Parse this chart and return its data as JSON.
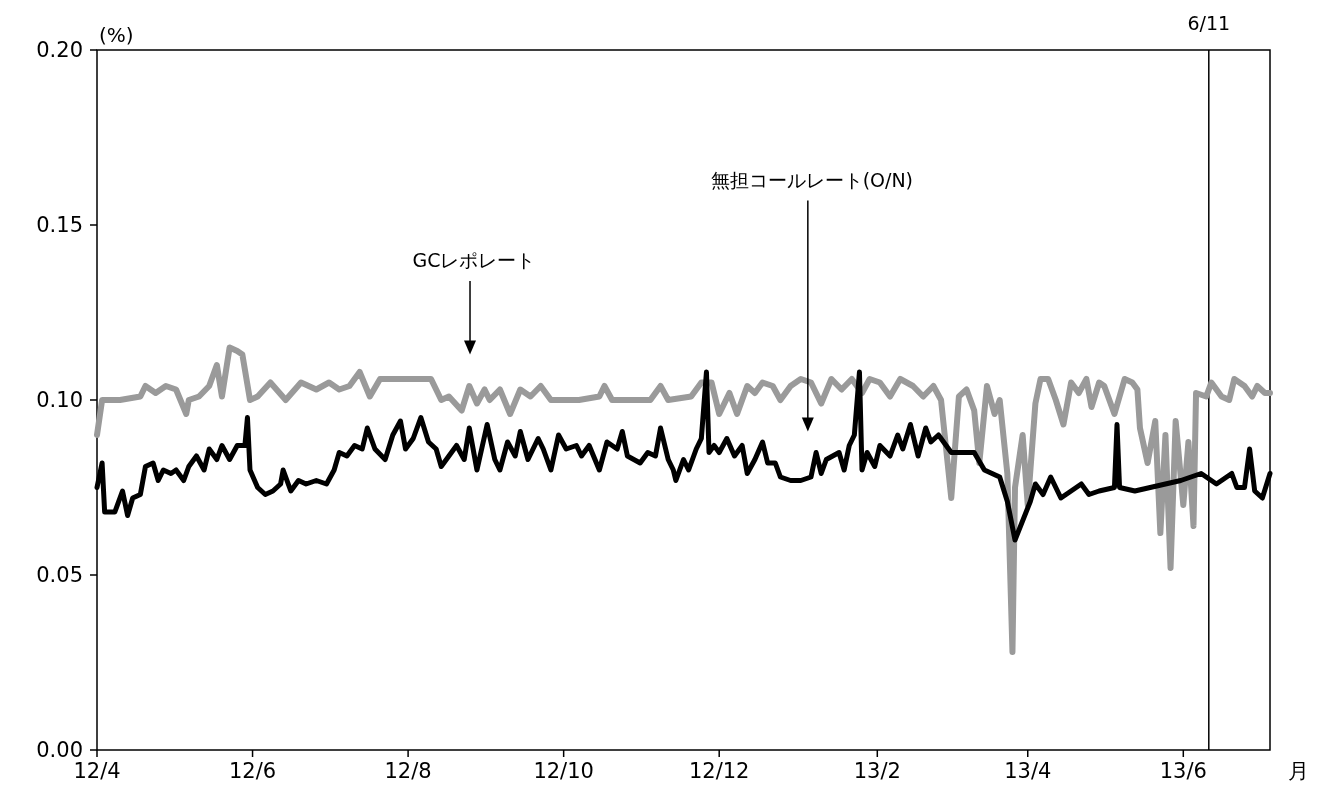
{
  "chart_data": {
    "type": "line",
    "ylabel": "(%)",
    "xlabel": "月",
    "xlim": [
      "2012-04-01",
      "2013-07-05"
    ],
    "ylim": [
      0,
      0.2
    ],
    "xticks": [
      {
        "value": "2012-04-01",
        "label": "12/4"
      },
      {
        "value": "2012-06-01",
        "label": "12/6"
      },
      {
        "value": "2012-08-01",
        "label": "12/8"
      },
      {
        "value": "2012-10-01",
        "label": "12/10"
      },
      {
        "value": "2012-12-01",
        "label": "12/12"
      },
      {
        "value": "2013-02-01",
        "label": "13/2"
      },
      {
        "value": "2013-04-01",
        "label": "13/4"
      },
      {
        "value": "2013-06-01",
        "label": "13/6"
      }
    ],
    "yticks": [
      {
        "value": 0,
        "label": "0.00"
      },
      {
        "value": 0.05,
        "label": "0.05"
      },
      {
        "value": 0.1,
        "label": "0.10"
      },
      {
        "value": 0.15,
        "label": "0.15"
      },
      {
        "value": 0.2,
        "label": "0.20"
      }
    ],
    "series": [
      {
        "color": "#9a9a9a",
        "x": [
          "2012-04-01",
          "2012-04-03",
          "2012-04-10",
          "2012-04-18",
          "2012-04-20",
          "2012-04-24",
          "2012-04-28",
          "2012-05-02",
          "2012-05-06",
          "2012-05-07",
          "2012-05-11",
          "2012-05-15",
          "2012-05-18",
          "2012-05-20",
          "2012-05-23",
          "2012-05-26",
          "2012-05-28",
          "2012-05-31",
          "2012-06-03",
          "2012-06-08",
          "2012-06-14",
          "2012-06-20",
          "2012-06-26",
          "2012-07-01",
          "2012-07-05",
          "2012-07-09",
          "2012-07-13",
          "2012-07-17",
          "2012-07-21",
          "2012-07-29",
          "2012-08-10",
          "2012-08-14",
          "2012-08-17",
          "2012-08-22",
          "2012-08-25",
          "2012-08-28",
          "2012-08-31",
          "2012-09-02",
          "2012-09-06",
          "2012-09-10",
          "2012-09-14",
          "2012-09-18",
          "2012-09-22",
          "2012-09-26",
          "2012-10-07",
          "2012-10-15",
          "2012-10-17",
          "2012-10-20",
          "2012-11-04",
          "2012-11-08",
          "2012-11-11",
          "2012-11-20",
          "2012-11-24",
          "2012-11-28",
          "2012-12-01",
          "2012-12-05",
          "2012-12-08",
          "2012-12-12",
          "2012-12-15",
          "2012-12-18",
          "2012-12-22",
          "2012-12-25",
          "2012-12-29",
          "2013-01-02",
          "2013-01-06",
          "2013-01-10",
          "2013-01-14",
          "2013-01-18",
          "2013-01-22",
          "2013-01-26",
          "2013-01-29",
          "2013-02-02",
          "2013-02-06",
          "2013-02-10",
          "2013-02-15",
          "2013-02-19",
          "2013-02-23",
          "2013-02-26",
          "2013-03-02",
          "2013-03-05",
          "2013-03-08",
          "2013-03-11",
          "2013-03-13",
          "2013-03-16",
          "2013-03-19",
          "2013-03-21",
          "2013-03-24",
          "2013-03-26",
          "2013-03-27",
          "2013-03-30",
          "2013-04-01",
          "2013-04-04",
          "2013-04-06",
          "2013-04-09",
          "2013-04-12",
          "2013-04-15",
          "2013-04-18",
          "2013-04-21",
          "2013-04-24",
          "2013-04-26",
          "2013-04-29",
          "2013-05-01",
          "2013-05-05",
          "2013-05-09",
          "2013-05-12",
          "2013-05-14",
          "2013-05-15",
          "2013-05-18",
          "2013-05-21",
          "2013-05-23",
          "2013-05-25",
          "2013-05-27",
          "2013-05-29",
          "2013-06-01",
          "2013-06-03",
          "2013-06-05",
          "2013-06-06",
          "2013-06-10",
          "2013-06-12",
          "2013-06-16",
          "2013-06-19",
          "2013-06-21",
          "2013-06-25",
          "2013-06-28",
          "2013-06-30",
          "2013-07-03",
          "2013-07-05"
        ],
        "values": [
          0.09,
          0.1,
          0.1,
          0.101,
          0.104,
          0.102,
          0.104,
          0.103,
          0.096,
          0.1,
          0.101,
          0.104,
          0.11,
          0.101,
          0.115,
          0.114,
          0.113,
          0.1,
          0.101,
          0.105,
          0.1,
          0.105,
          0.103,
          0.105,
          0.103,
          0.104,
          0.108,
          0.101,
          0.106,
          0.106,
          0.106,
          0.1,
          0.101,
          0.097,
          0.104,
          0.099,
          0.103,
          0.1,
          0.103,
          0.096,
          0.103,
          0.101,
          0.104,
          0.1,
          0.1,
          0.101,
          0.104,
          0.1,
          0.1,
          0.104,
          0.1,
          0.101,
          0.105,
          0.105,
          0.096,
          0.102,
          0.096,
          0.104,
          0.102,
          0.105,
          0.104,
          0.1,
          0.104,
          0.106,
          0.105,
          0.099,
          0.106,
          0.103,
          0.106,
          0.102,
          0.106,
          0.105,
          0.101,
          0.106,
          0.104,
          0.101,
          0.104,
          0.1,
          0.072,
          0.101,
          0.103,
          0.097,
          0.082,
          0.104,
          0.096,
          0.1,
          0.079,
          0.028,
          0.075,
          0.09,
          0.07,
          0.099,
          0.106,
          0.106,
          0.1,
          0.093,
          0.105,
          0.102,
          0.106,
          0.098,
          0.105,
          0.104,
          0.096,
          0.106,
          0.105,
          0.103,
          0.092,
          0.082,
          0.094,
          0.062,
          0.09,
          0.052,
          0.094,
          0.07,
          0.088,
          0.064,
          0.102,
          0.101,
          0.105,
          0.101,
          0.1,
          0.106,
          0.104,
          0.101,
          0.104,
          0.102,
          0.102
        ]
      },
      {
        "color": "#000000",
        "x": [
          "2012-04-01",
          "2012-04-03",
          "2012-04-04",
          "2012-04-08",
          "2012-04-11",
          "2012-04-13",
          "2012-04-15",
          "2012-04-18",
          "2012-04-20",
          "2012-04-23",
          "2012-04-25",
          "2012-04-27",
          "2012-04-30",
          "2012-05-02",
          "2012-05-05",
          "2012-05-07",
          "2012-05-10",
          "2012-05-13",
          "2012-05-15",
          "2012-05-18",
          "2012-05-20",
          "2012-05-23",
          "2012-05-26",
          "2012-05-29",
          "2012-05-30",
          "2012-05-31",
          "2012-06-03",
          "2012-06-06",
          "2012-06-09",
          "2012-06-12",
          "2012-06-13",
          "2012-06-16",
          "2012-06-19",
          "2012-06-22",
          "2012-06-26",
          "2012-06-30",
          "2012-07-03",
          "2012-07-05",
          "2012-07-08",
          "2012-07-11",
          "2012-07-14",
          "2012-07-16",
          "2012-07-19",
          "2012-07-23",
          "2012-07-26",
          "2012-07-29",
          "2012-07-31",
          "2012-08-03",
          "2012-08-06",
          "2012-08-09",
          "2012-08-12",
          "2012-08-14",
          "2012-08-17",
          "2012-08-20",
          "2012-08-23",
          "2012-08-25",
          "2012-08-28",
          "2012-09-01",
          "2012-09-04",
          "2012-09-06",
          "2012-09-09",
          "2012-09-12",
          "2012-09-14",
          "2012-09-17",
          "2012-09-21",
          "2012-09-23",
          "2012-09-26",
          "2012-09-29",
          "2012-10-02",
          "2012-10-06",
          "2012-10-08",
          "2012-10-11",
          "2012-10-15",
          "2012-10-18",
          "2012-10-22",
          "2012-10-24",
          "2012-10-26",
          "2012-10-31",
          "2012-11-03",
          "2012-11-06",
          "2012-11-08",
          "2012-11-11",
          "2012-11-13",
          "2012-11-14",
          "2012-11-17",
          "2012-11-19",
          "2012-11-22",
          "2012-11-24",
          "2012-11-26",
          "2012-11-27",
          "2012-11-29",
          "2012-12-01",
          "2012-12-04",
          "2012-12-07",
          "2012-12-10",
          "2012-12-12",
          "2012-12-15",
          "2012-12-18",
          "2012-12-20",
          "2012-12-23",
          "2012-12-25",
          "2012-12-29",
          "2013-01-02",
          "2013-01-06",
          "2013-01-08",
          "2013-01-10",
          "2013-01-12",
          "2013-01-17",
          "2013-01-19",
          "2013-01-21",
          "2013-01-23",
          "2013-01-25",
          "2013-01-26",
          "2013-01-28",
          "2013-01-31",
          "2013-02-02",
          "2013-02-06",
          "2013-02-09",
          "2013-02-11",
          "2013-02-14",
          "2013-02-17",
          "2013-02-20",
          "2013-02-22",
          "2013-02-25",
          "2013-02-28",
          "2013-03-02",
          "2013-03-11",
          "2013-03-15",
          "2013-03-21",
          "2013-03-24",
          "2013-03-27",
          "2013-04-02",
          "2013-04-04",
          "2013-04-07",
          "2013-04-10",
          "2013-04-14",
          "2013-04-18",
          "2013-04-22",
          "2013-04-25",
          "2013-04-29",
          "2013-05-05",
          "2013-05-06",
          "2013-05-07",
          "2013-05-13",
          "2013-05-19",
          "2013-05-25",
          "2013-05-31",
          "2013-06-08",
          "2013-06-14",
          "2013-06-20",
          "2013-06-22",
          "2013-06-25",
          "2013-06-27",
          "2013-06-29",
          "2013-07-02",
          "2013-07-05"
        ],
        "values": [
          0.075,
          0.082,
          0.068,
          0.068,
          0.074,
          0.067,
          0.072,
          0.073,
          0.081,
          0.082,
          0.077,
          0.08,
          0.079,
          0.08,
          0.077,
          0.081,
          0.084,
          0.08,
          0.086,
          0.083,
          0.087,
          0.083,
          0.087,
          0.087,
          0.095,
          0.08,
          0.075,
          0.073,
          0.074,
          0.076,
          0.08,
          0.074,
          0.077,
          0.076,
          0.077,
          0.076,
          0.08,
          0.085,
          0.084,
          0.087,
          0.086,
          0.092,
          0.086,
          0.083,
          0.09,
          0.094,
          0.086,
          0.089,
          0.095,
          0.088,
          0.086,
          0.081,
          0.084,
          0.087,
          0.083,
          0.092,
          0.08,
          0.093,
          0.083,
          0.08,
          0.088,
          0.084,
          0.091,
          0.083,
          0.089,
          0.086,
          0.08,
          0.09,
          0.086,
          0.087,
          0.084,
          0.087,
          0.08,
          0.088,
          0.086,
          0.091,
          0.084,
          0.082,
          0.085,
          0.084,
          0.092,
          0.083,
          0.08,
          0.077,
          0.083,
          0.08,
          0.086,
          0.089,
          0.108,
          0.085,
          0.087,
          0.085,
          0.089,
          0.084,
          0.087,
          0.079,
          0.083,
          0.088,
          0.082,
          0.082,
          0.078,
          0.077,
          0.077,
          0.078,
          0.085,
          0.079,
          0.083,
          0.085,
          0.08,
          0.087,
          0.09,
          0.108,
          0.08,
          0.085,
          0.081,
          0.087,
          0.084,
          0.09,
          0.086,
          0.093,
          0.084,
          0.092,
          0.088,
          0.09,
          0.087,
          0.085,
          0.085,
          0.08,
          0.078,
          0.071,
          0.06,
          0.071,
          0.076,
          0.073,
          0.078,
          0.072,
          0.074,
          0.076,
          0.073,
          0.074,
          0.075,
          0.093,
          0.075,
          0.074,
          0.075,
          0.076,
          0.077,
          0.079,
          0.076,
          0.079,
          0.075,
          0.075,
          0.086,
          0.074,
          0.072,
          0.079
        ]
      }
    ],
    "ref_lines": [
      {
        "axis": "x",
        "value": "2013-06-11",
        "label": "6/11",
        "color": "#000000"
      }
    ],
    "annotations": [
      "GCレポレート",
      "無担コールレート(O/N)"
    ]
  }
}
